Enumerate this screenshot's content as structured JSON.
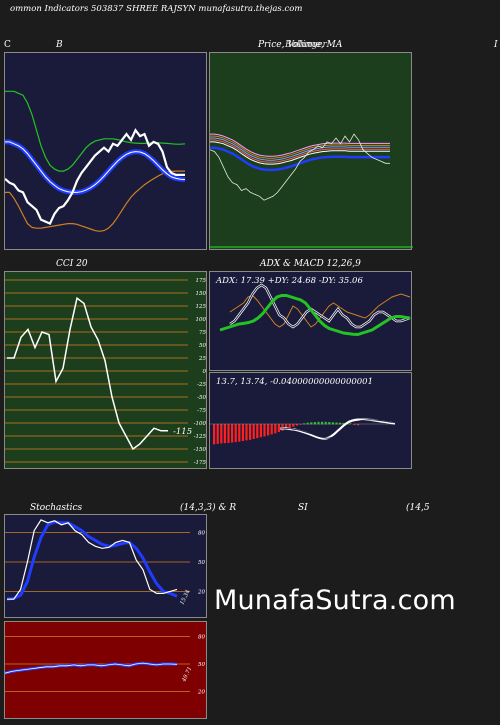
{
  "header": {
    "text": "ommon  Indicators 503837 SHREE RAJSYN  munafasutra.thejas.com"
  },
  "brand": {
    "watermark": "MunafaSutra.com"
  },
  "panels": {
    "c_marker": "C",
    "b_title": "B",
    "price_title": "Price,  Volume,  MA",
    "price_title_overlap": "Bollinger",
    "right_marker": "I",
    "cci_title": "CCI 20",
    "cci_value": "-115",
    "adx_title": "ADX  & MACD 12,26,9",
    "adx_values": "ADX: 17.39 +DY: 24.68  -DY: 35.06",
    "macd_values": "13.7,   13.74,  -0.04000000000000001",
    "stoch_title_left": "Stochastics",
    "stoch_title_mid": "(14,3,3) & R",
    "stoch_title_si": "SI",
    "stoch_title_right": "(14,5",
    "stoch_value": "15.34",
    "rsi_value": "49.71"
  },
  "colors": {
    "navy": "#1a1b3a",
    "green_bg": "#1c3e1c",
    "red_bg": "#7f0000",
    "orange": "#d08020",
    "blue": "#1f3cff",
    "green_line": "#22c322",
    "white": "#ffffff"
  },
  "chart_data": [
    {
      "type": "line",
      "name_hint": "bollinger-panel",
      "x": [
        0,
        1,
        2,
        3,
        4,
        5,
        6,
        7,
        8,
        9,
        10,
        11,
        12,
        13,
        14,
        15,
        16,
        17,
        18,
        19,
        20,
        21,
        22,
        23,
        24,
        25,
        26,
        27,
        28,
        29,
        30,
        31,
        32,
        33,
        34,
        35,
        36,
        37,
        38,
        39,
        40
      ],
      "series": [
        {
          "role": "upper",
          "values": [
            3.9,
            3.9,
            3.9,
            3.85,
            3.8,
            3.6,
            3.3,
            2.9,
            2.5,
            2.2,
            2.0,
            1.9,
            1.85,
            1.85,
            1.9,
            2.0,
            2.15,
            2.3,
            2.45,
            2.55,
            2.62,
            2.65,
            2.68,
            2.68,
            2.68,
            2.66,
            2.63,
            2.6,
            2.58,
            2.57,
            2.56,
            2.56,
            2.57,
            2.58,
            2.58,
            2.57,
            2.56,
            2.55,
            2.54,
            2.54,
            2.55
          ]
        },
        {
          "role": "middle",
          "values": [
            2.6,
            2.6,
            2.55,
            2.5,
            2.42,
            2.3,
            2.15,
            2.0,
            1.85,
            1.7,
            1.58,
            1.48,
            1.4,
            1.35,
            1.32,
            1.3,
            1.3,
            1.32,
            1.36,
            1.42,
            1.5,
            1.6,
            1.72,
            1.85,
            1.98,
            2.1,
            2.2,
            2.28,
            2.33,
            2.35,
            2.34,
            2.3,
            2.22,
            2.12,
            2.0,
            1.88,
            1.78,
            1.7,
            1.66,
            1.64,
            1.63
          ]
        },
        {
          "role": "lower",
          "values": [
            1.3,
            1.3,
            1.15,
            0.95,
            0.72,
            0.5,
            0.4,
            0.38,
            0.38,
            0.4,
            0.42,
            0.44,
            0.46,
            0.48,
            0.5,
            0.5,
            0.48,
            0.44,
            0.4,
            0.36,
            0.32,
            0.3,
            0.32,
            0.38,
            0.5,
            0.66,
            0.84,
            1.02,
            1.18,
            1.3,
            1.4,
            1.5,
            1.58,
            1.65,
            1.72,
            1.78,
            1.82,
            1.84,
            1.85,
            1.85,
            1.85
          ]
        },
        {
          "role": "price",
          "values": [
            1.65,
            1.55,
            1.5,
            1.35,
            1.3,
            1.05,
            0.95,
            0.85,
            0.6,
            0.55,
            0.5,
            0.75,
            0.9,
            0.95,
            1.1,
            1.3,
            1.6,
            1.8,
            1.95,
            2.1,
            2.25,
            2.35,
            2.45,
            2.35,
            2.55,
            2.5,
            2.65,
            2.8,
            2.65,
            2.9,
            2.75,
            2.8,
            2.5,
            2.6,
            2.55,
            2.35,
            1.95,
            1.8,
            1.75,
            1.75,
            1.75
          ]
        }
      ],
      "ylim": [
        0,
        4.5
      ]
    },
    {
      "type": "line",
      "name_hint": "price-volume-ma-panel",
      "x": [
        0,
        1,
        2,
        3,
        4,
        5,
        6,
        7,
        8,
        9,
        10,
        11,
        12,
        13,
        14,
        15,
        16,
        17,
        18,
        19,
        20,
        21,
        22,
        23,
        24,
        25,
        26,
        27,
        28,
        29,
        30,
        31,
        32,
        33,
        34,
        35,
        36,
        37,
        38,
        39,
        40
      ],
      "series": [
        {
          "role": "price",
          "values": [
            2.4,
            2.35,
            2.2,
            1.95,
            1.7,
            1.55,
            1.5,
            1.35,
            1.4,
            1.3,
            1.25,
            1.2,
            1.1,
            1.15,
            1.2,
            1.3,
            1.45,
            1.6,
            1.75,
            1.9,
            2.1,
            2.2,
            2.35,
            2.4,
            2.5,
            2.45,
            2.6,
            2.55,
            2.7,
            2.55,
            2.75,
            2.6,
            2.8,
            2.65,
            2.4,
            2.3,
            2.2,
            2.15,
            2.1,
            2.05,
            2.05
          ]
        },
        {
          "role": "ma",
          "values": [
            2.6,
            2.6,
            2.58,
            2.55,
            2.5,
            2.45,
            2.38,
            2.3,
            2.22,
            2.15,
            2.1,
            2.06,
            2.04,
            2.03,
            2.03,
            2.04,
            2.06,
            2.09,
            2.12,
            2.16,
            2.2,
            2.24,
            2.28,
            2.31,
            2.33,
            2.35,
            2.36,
            2.37,
            2.37,
            2.37,
            2.37,
            2.36,
            2.36,
            2.36,
            2.36,
            2.36,
            2.36,
            2.36,
            2.36,
            2.36,
            2.36
          ]
        }
      ],
      "ylim": [
        0,
        4.5
      ]
    },
    {
      "type": "line",
      "name_hint": "cci-panel",
      "title": "CCI 20",
      "ylim": [
        -175,
        175
      ],
      "yticks": [
        175,
        150,
        125,
        100,
        75,
        50,
        25,
        0,
        -25,
        -50,
        -75,
        -100,
        -125,
        -150,
        -175
      ],
      "x": [
        0,
        1,
        2,
        3,
        4,
        5,
        6,
        7,
        8,
        9,
        10,
        11,
        12,
        13,
        14,
        15,
        16,
        17,
        18,
        19,
        20,
        21,
        22,
        23
      ],
      "values": [
        25,
        25,
        65,
        80,
        45,
        75,
        70,
        -20,
        5,
        80,
        140,
        130,
        85,
        60,
        20,
        -50,
        -100,
        -125,
        -150,
        -140,
        -125,
        -110,
        -115,
        -115
      ]
    },
    {
      "type": "line",
      "name_hint": "adx-panel",
      "title": "ADX  & MACD 12,26,9",
      "series": [
        {
          "name": "ADX",
          "values": [
            1.4,
            1.45,
            1.5,
            1.55,
            1.6,
            1.62,
            1.65,
            1.7,
            1.8,
            1.95,
            2.15,
            2.35,
            2.5,
            2.55,
            2.55,
            2.5,
            2.45,
            2.4,
            2.3,
            2.1,
            1.9,
            1.7,
            1.55,
            1.45,
            1.4,
            1.35,
            1.3,
            1.28,
            1.26,
            1.25,
            1.3,
            1.35,
            1.4,
            1.5,
            1.6,
            1.7,
            1.8,
            1.85,
            1.85,
            1.82,
            1.8
          ]
        },
        {
          "name": "+DY",
          "values": [
            1.6,
            1.7,
            1.9,
            2.1,
            2.3,
            2.6,
            2.8,
            2.9,
            2.8,
            2.5,
            2.2,
            1.9,
            1.8,
            1.6,
            1.5,
            1.6,
            1.8,
            2.0,
            2.1,
            2.0,
            1.9,
            1.8,
            1.7,
            1.9,
            2.1,
            1.9,
            1.8,
            1.6,
            1.5,
            1.5,
            1.6,
            1.7,
            1.9,
            2.0,
            2.0,
            1.9,
            1.8,
            1.7,
            1.7,
            1.75,
            1.8
          ]
        },
        {
          "name": "-DY",
          "values": [
            2.0,
            2.1,
            2.2,
            2.3,
            2.5,
            2.55,
            2.4,
            2.2,
            2.0,
            1.8,
            1.6,
            1.5,
            1.6,
            1.9,
            2.2,
            2.1,
            1.9,
            1.7,
            1.5,
            1.6,
            1.8,
            2.0,
            2.2,
            2.3,
            2.2,
            2.1,
            2.0,
            1.95,
            1.9,
            1.85,
            1.8,
            1.9,
            2.05,
            2.2,
            2.3,
            2.4,
            2.5,
            2.55,
            2.6,
            2.55,
            2.5
          ]
        }
      ]
    },
    {
      "type": "bar",
      "name_hint": "macd-panel",
      "values": [
        -0.9,
        -0.88,
        -0.86,
        -0.85,
        -0.84,
        -0.82,
        -0.8,
        -0.78,
        -0.75,
        -0.72,
        -0.7,
        -0.66,
        -0.62,
        -0.58,
        -0.54,
        -0.5,
        -0.45,
        -0.4,
        -0.34,
        -0.28,
        -0.22,
        -0.16,
        -0.1,
        -0.05,
        -0.01,
        0.03,
        0.06,
        0.08,
        0.09,
        0.1,
        0.1,
        0.1,
        0.09,
        0.08,
        0.07,
        0.06,
        0.05,
        0.04,
        0.03,
        -0.02,
        -0.04
      ],
      "macd": [
        -0.2,
        -0.2,
        -0.2,
        -0.22,
        -0.24,
        -0.25,
        -0.28,
        -0.32,
        -0.36,
        -0.4,
        -0.45,
        -0.5,
        -0.55,
        -0.6,
        -0.64,
        -0.66,
        -0.66,
        -0.62,
        -0.54,
        -0.44,
        -0.32,
        -0.2,
        -0.08,
        0.02,
        0.1,
        0.15,
        0.18,
        0.2,
        0.2,
        0.2,
        0.2,
        0.19,
        0.18,
        0.16,
        0.14,
        0.12,
        0.1,
        0.08,
        0.06,
        0.04,
        0.02
      ],
      "signal": [
        -0.18,
        -0.19,
        -0.2,
        -0.21,
        -0.22,
        -0.24,
        -0.26,
        -0.29,
        -0.33,
        -0.37,
        -0.41,
        -0.45,
        -0.5,
        -0.55,
        -0.59,
        -0.62,
        -0.64,
        -0.64,
        -0.61,
        -0.55,
        -0.47,
        -0.38,
        -0.28,
        -0.18,
        -0.08,
        0.0,
        0.07,
        0.12,
        0.15,
        0.17,
        0.18,
        0.19,
        0.19,
        0.18,
        0.17,
        0.15,
        0.13,
        0.11,
        0.09,
        0.07,
        0.06
      ]
    },
    {
      "type": "line",
      "name_hint": "stochastics-panel",
      "ylim": [
        0,
        100
      ],
      "yticks": [
        80,
        50,
        20
      ],
      "series": [
        {
          "role": "k",
          "values": [
            12,
            12,
            22,
            50,
            82,
            93,
            90,
            92,
            88,
            90,
            82,
            78,
            70,
            66,
            64,
            65,
            70,
            72,
            70,
            52,
            42,
            22,
            18,
            18,
            20,
            22
          ]
        },
        {
          "role": "d",
          "values": [
            12,
            13,
            16,
            30,
            55,
            75,
            88,
            91,
            90,
            90,
            86,
            82,
            76,
            72,
            68,
            66,
            67,
            69,
            70,
            64,
            54,
            40,
            28,
            20,
            18,
            15
          ]
        }
      ],
      "value_label": "15.34"
    },
    {
      "type": "line",
      "name_hint": "rsi-panel",
      "ylim": [
        0,
        100
      ],
      "yticks": [
        80,
        50,
        20
      ],
      "values": [
        40,
        42,
        43,
        44,
        45,
        46,
        47,
        47,
        48,
        48,
        49,
        48,
        49,
        49,
        48,
        49,
        50,
        49,
        48,
        50,
        51,
        50,
        49,
        50,
        50,
        49.71
      ]
    }
  ]
}
